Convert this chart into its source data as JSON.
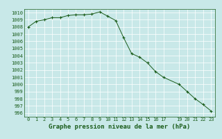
{
  "x": [
    0,
    1,
    2,
    3,
    4,
    5,
    6,
    7,
    8,
    9,
    10,
    11,
    12,
    13,
    14,
    15,
    16,
    17,
    19,
    20,
    21,
    22,
    23
  ],
  "y": [
    1008.0,
    1008.8,
    1009.0,
    1009.3,
    1009.3,
    1009.6,
    1009.7,
    1009.7,
    1009.8,
    1010.1,
    1009.5,
    1008.9,
    1006.5,
    1004.3,
    1003.8,
    1003.0,
    1001.8,
    1001.0,
    1000.0,
    999.0,
    998.0,
    997.2,
    996.3
  ],
  "line_color": "#1a5c1a",
  "marker": "+",
  "marker_color": "#1a5c1a",
  "bg_color": "#c8e8e8",
  "grid_color": "#ffffff",
  "text_color": "#1a5c1a",
  "title": "Graphe pression niveau de la mer (hPa)",
  "xlim": [
    -0.5,
    23.5
  ],
  "ylim": [
    995.5,
    1010.5
  ],
  "yticks": [
    996,
    997,
    998,
    999,
    1000,
    1001,
    1002,
    1003,
    1004,
    1005,
    1006,
    1007,
    1008,
    1009,
    1010
  ],
  "xticks": [
    0,
    1,
    2,
    3,
    4,
    5,
    6,
    7,
    8,
    9,
    10,
    11,
    12,
    13,
    14,
    15,
    16,
    17,
    19,
    20,
    21,
    22,
    23
  ],
  "xtick_labels": [
    "0",
    "1",
    "2",
    "3",
    "4",
    "5",
    "6",
    "7",
    "8",
    "9",
    "10",
    "11",
    "12",
    "13",
    "14",
    "15",
    "16",
    "17",
    "19",
    "20",
    "21",
    "22",
    "23"
  ],
  "title_fontsize": 6.5,
  "tick_fontsize": 5.0
}
